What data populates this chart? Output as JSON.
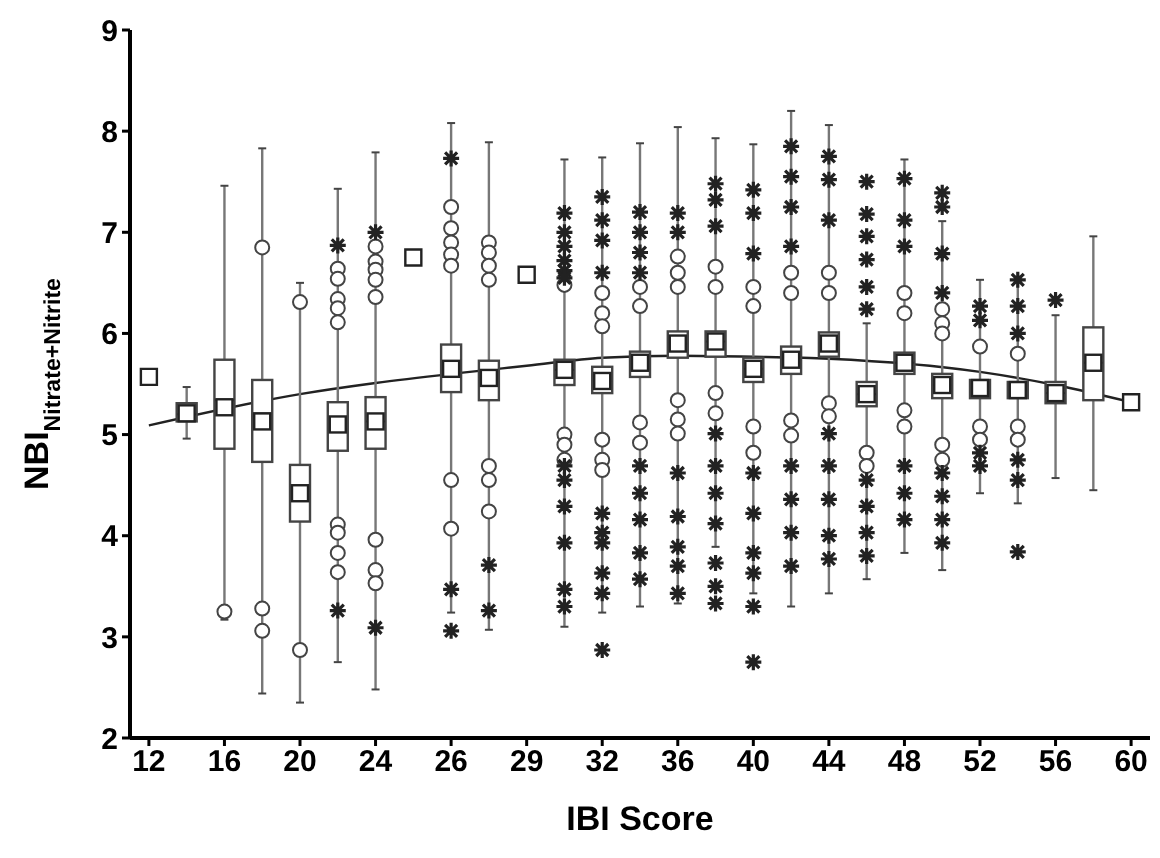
{
  "chart_data": {
    "type": "box",
    "xlabel": "IBI Score",
    "ylabel": "NBI$_{Nitrate+Nitrite}$",
    "categories": [
      "12",
      null,
      "16",
      null,
      "20",
      null,
      "24",
      null,
      "26",
      null,
      "29",
      null,
      "32",
      null,
      "36",
      null,
      "40",
      null,
      "44",
      null,
      "48",
      null,
      "52",
      null,
      "56",
      null,
      "60"
    ],
    "ylim": [
      2,
      9
    ],
    "yticks": [
      2,
      3,
      4,
      5,
      6,
      7,
      8,
      9
    ],
    "grid": false,
    "legend": false,
    "series": [
      {
        "color": "#444444",
        "boxes": [
          null,
          {
            "low": 4.96,
            "q1": 5.13,
            "median": 5.2,
            "q3": 5.31,
            "high": 5.47,
            "mean": 5.21
          },
          {
            "low": 3.17,
            "q1": 4.86,
            "median": 5.34,
            "q3": 5.74,
            "high": 7.46,
            "mean": 5.27,
            "outliers": [
              3.25
            ]
          },
          {
            "low": 2.44,
            "q1": 4.73,
            "median": 5.21,
            "q3": 5.54,
            "high": 7.83,
            "mean": 5.13,
            "outliers": [
              6.85,
              3.28,
              3.06
            ]
          },
          {
            "low": 2.35,
            "q1": 4.14,
            "median": 4.45,
            "q3": 4.7,
            "high": 6.5,
            "mean": 4.42,
            "outliers": [
              6.31,
              2.87
            ]
          },
          {
            "low": 2.75,
            "q1": 4.84,
            "median": 5.05,
            "q3": 5.32,
            "high": 7.43,
            "mean": 5.1,
            "outliers": [
              6.87,
              6.64,
              6.54,
              6.34,
              6.25,
              6.11,
              4.11,
              4.03,
              3.83,
              3.64,
              3.26
            ]
          },
          {
            "low": 2.48,
            "q1": 4.86,
            "median": 5.13,
            "q3": 5.37,
            "high": 7.79,
            "mean": 5.13,
            "outliers": [
              7.0,
              6.86,
              6.71,
              6.63,
              6.53,
              6.36,
              3.96,
              3.66,
              3.53,
              3.09
            ]
          },
          null,
          {
            "low": 3.24,
            "q1": 5.42,
            "median": 5.62,
            "q3": 5.89,
            "high": 8.08,
            "mean": 5.65,
            "outliers": [
              7.73,
              7.25,
              7.04,
              6.9,
              6.78,
              6.67,
              4.55,
              4.07,
              3.47,
              3.06
            ]
          },
          {
            "low": 3.07,
            "q1": 5.34,
            "median": 5.56,
            "q3": 5.73,
            "high": 7.89,
            "mean": 5.56,
            "outliers": [
              6.9,
              6.8,
              6.67,
              6.53,
              4.69,
              4.55,
              4.24,
              3.71,
              3.26
            ]
          },
          null,
          {
            "low": 3.1,
            "q1": 5.49,
            "median": 5.64,
            "q3": 5.74,
            "high": 7.72,
            "mean": 5.64,
            "outliers": [
              7.19,
              7.0,
              6.86,
              6.72,
              6.62,
              6.55,
              6.48,
              5.0,
              4.9,
              4.75,
              4.69,
              4.55,
              4.29,
              3.93,
              3.47,
              3.3
            ]
          },
          {
            "low": 3.24,
            "q1": 5.41,
            "median": 5.53,
            "q3": 5.67,
            "high": 7.74,
            "mean": 5.53,
            "outliers": [
              7.35,
              7.12,
              6.92,
              6.6,
              6.4,
              6.2,
              6.07,
              4.95,
              4.75,
              4.65,
              4.22,
              4.03,
              3.93,
              3.63,
              3.43,
              2.87
            ]
          },
          {
            "low": 3.3,
            "q1": 5.57,
            "median": 5.71,
            "q3": 5.82,
            "high": 7.88,
            "mean": 5.71,
            "outliers": [
              7.2,
              7.0,
              6.8,
              6.6,
              6.46,
              6.27,
              5.12,
              4.92,
              4.69,
              4.42,
              4.16,
              3.83,
              3.57
            ]
          },
          {
            "low": 3.33,
            "q1": 5.76,
            "median": 5.9,
            "q3": 6.02,
            "high": 8.04,
            "mean": 5.9,
            "outliers": [
              7.19,
              7.0,
              6.76,
              6.6,
              6.46,
              5.34,
              5.15,
              5.01,
              4.62,
              4.19,
              3.89,
              3.7,
              3.43
            ]
          },
          {
            "low": 3.89,
            "q1": 5.77,
            "median": 5.92,
            "q3": 6.02,
            "high": 7.93,
            "mean": 5.92,
            "outliers": [
              7.48,
              7.32,
              7.06,
              6.66,
              6.46,
              5.41,
              5.21,
              5.01,
              4.69,
              4.42,
              4.12,
              3.73,
              3.5,
              3.33
            ]
          },
          {
            "low": 3.43,
            "q1": 5.52,
            "median": 5.65,
            "q3": 5.76,
            "high": 7.87,
            "mean": 5.65,
            "outliers": [
              7.42,
              7.19,
              6.79,
              6.46,
              6.27,
              5.08,
              4.82,
              4.62,
              4.22,
              3.83,
              3.63,
              3.3,
              2.75
            ]
          },
          {
            "low": 3.3,
            "q1": 5.6,
            "median": 5.74,
            "q3": 5.87,
            "high": 8.2,
            "mean": 5.74,
            "outliers": [
              7.85,
              7.55,
              7.25,
              6.86,
              6.6,
              6.4,
              5.14,
              4.99,
              4.69,
              4.36,
              4.03,
              3.7
            ]
          },
          {
            "low": 3.43,
            "q1": 5.77,
            "median": 5.9,
            "q3": 6.01,
            "high": 8.06,
            "mean": 5.9,
            "outliers": [
              7.75,
              7.52,
              7.12,
              6.6,
              6.4,
              5.31,
              5.18,
              5.01,
              4.69,
              4.36,
              4.0,
              3.77
            ]
          },
          {
            "low": 3.57,
            "q1": 5.28,
            "median": 5.4,
            "q3": 5.52,
            "high": 6.1,
            "mean": 5.4,
            "outliers": [
              7.5,
              7.18,
              6.96,
              6.73,
              6.46,
              6.24,
              4.82,
              4.69,
              4.55,
              4.29,
              4.03,
              3.8
            ]
          },
          {
            "low": 3.83,
            "q1": 5.6,
            "median": 5.71,
            "q3": 5.81,
            "high": 7.72,
            "mean": 5.71,
            "outliers": [
              7.53,
              7.12,
              6.86,
              6.4,
              6.2,
              5.24,
              5.08,
              4.69,
              4.42,
              4.16
            ]
          },
          {
            "low": 3.66,
            "q1": 5.36,
            "median": 5.49,
            "q3": 5.6,
            "high": 7.11,
            "mean": 5.49,
            "outliers": [
              7.39,
              7.25,
              6.79,
              6.4,
              6.24,
              6.1,
              6.0,
              4.9,
              4.75,
              4.62,
              4.39,
              4.16,
              3.93
            ]
          },
          {
            "low": 4.42,
            "q1": 5.36,
            "median": 5.46,
            "q3": 5.54,
            "high": 6.53,
            "mean": 5.46,
            "outliers": [
              6.27,
              6.13,
              5.87,
              5.08,
              4.95,
              4.82,
              4.69
            ]
          },
          {
            "low": 4.32,
            "q1": 5.36,
            "median": 5.44,
            "q3": 5.52,
            "high": 6.56,
            "mean": 5.44,
            "outliers": [
              6.53,
              6.27,
              6.0,
              5.8,
              5.08,
              4.95,
              4.75,
              4.55,
              3.84
            ]
          },
          {
            "low": 4.57,
            "q1": 5.31,
            "median": 5.41,
            "q3": 5.52,
            "high": 6.18,
            "mean": 5.41,
            "outliers": [
              6.33
            ]
          },
          {
            "low": 4.45,
            "q1": 5.34,
            "median": 5.71,
            "q3": 6.06,
            "high": 6.96,
            "mean": 5.71
          },
          null
        ]
      },
      {
        "type": "scatter",
        "marker": "square",
        "color": "#222222",
        "values": [
          5.57,
          null,
          null,
          null,
          null,
          null,
          null,
          6.75,
          null,
          null,
          6.58,
          null,
          null,
          null,
          null,
          null,
          null,
          null,
          null,
          null,
          null,
          null,
          null,
          null,
          null,
          null,
          5.32
        ]
      },
      {
        "type": "line",
        "color": "#222222",
        "x": [
          "12",
          "20",
          "24",
          "26",
          "29",
          "32",
          "36",
          "40",
          "44",
          "52",
          "56",
          "60"
        ],
        "values": [
          5.09,
          5.4,
          5.51,
          5.6,
          5.68,
          5.76,
          5.78,
          5.77,
          5.75,
          5.62,
          5.49,
          5.32
        ]
      }
    ]
  }
}
